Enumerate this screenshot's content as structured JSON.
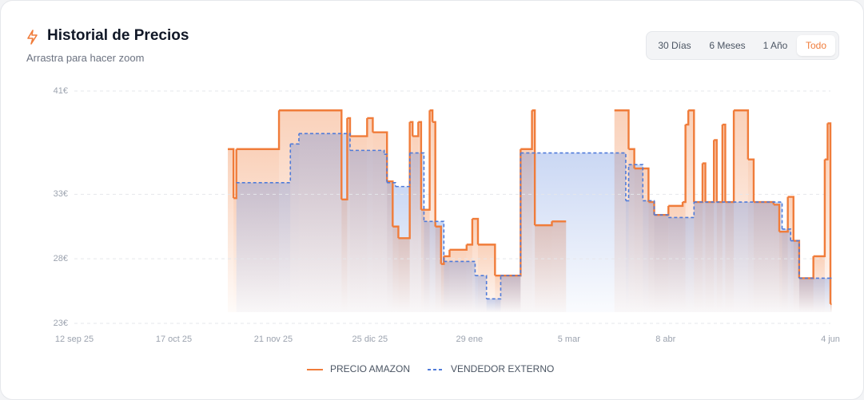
{
  "header": {
    "title": "Historial de Precios",
    "subtitle": "Arrastra para hacer zoom"
  },
  "range_buttons": [
    "30 Días",
    "6 Meses",
    "1 Año",
    "Todo"
  ],
  "selected_range": 3,
  "chart_data": {
    "type": "step",
    "xlim": [
      0,
      266
    ],
    "xticks": [
      {
        "value": 0,
        "label": "12 sep 25"
      },
      {
        "value": 35,
        "label": "17 oct 25"
      },
      {
        "value": 70,
        "label": "21 nov 25"
      },
      {
        "value": 104,
        "label": "25 dic 25"
      },
      {
        "value": 139,
        "label": "29 ene"
      },
      {
        "value": 174,
        "label": "5 mar"
      },
      {
        "value": 208,
        "label": "8 abr"
      },
      {
        "value": 266,
        "label": "4 jun"
      }
    ],
    "ylim": [
      23,
      41
    ],
    "yticks": [
      {
        "value": 23,
        "label": "23€"
      },
      {
        "value": 28,
        "label": "28€"
      },
      {
        "value": 33,
        "label": "33€"
      },
      {
        "value": 41,
        "label": "41€"
      }
    ],
    "grid": true,
    "series": [
      {
        "name": "PRECIO AMAZON",
        "color": "#f07c3a",
        "dashed": false,
        "x": [
          54,
          56,
          57,
          72,
          94,
          96,
          97,
          103,
          105,
          110,
          112,
          114,
          118,
          119,
          121,
          122,
          125,
          126,
          127,
          129,
          130,
          132,
          138,
          140,
          142,
          148,
          157,
          161,
          162,
          168,
          173,
          190,
          195,
          197,
          202,
          204,
          209,
          214,
          215,
          216,
          218,
          221,
          222,
          225,
          226,
          228,
          229,
          232,
          237,
          239,
          246,
          248,
          251,
          253,
          255,
          260,
          264,
          265,
          266
        ],
        "values": [
          36.5,
          32.7,
          36.5,
          39.5,
          32.6,
          38.9,
          37.5,
          38.9,
          37.8,
          34.0,
          30.5,
          29.6,
          38.6,
          37.5,
          38.6,
          31.8,
          39.5,
          38.6,
          30.5,
          27.6,
          28.2,
          28.7,
          29.1,
          31.1,
          29.1,
          26.7,
          36.5,
          39.5,
          30.6,
          30.9,
          null,
          39.5,
          36.5,
          35.0,
          32.4,
          31.4,
          32.1,
          32.4,
          38.4,
          39.5,
          32.4,
          35.4,
          32.4,
          37.2,
          32.4,
          38.4,
          32.4,
          39.5,
          35.7,
          32.4,
          32.2,
          30.1,
          32.8,
          29.4,
          26.5,
          28.2,
          35.7,
          38.5,
          24.5
        ]
      },
      {
        "name": "VENDEDOR EXTERNO",
        "color": "#4f7bd9",
        "dashed": true,
        "x": [
          57,
          76,
          79,
          97,
          109,
          110,
          113,
          118,
          123,
          130,
          141,
          145,
          150,
          157,
          194,
          195,
          200,
          204,
          209,
          218,
          249,
          252,
          255,
          266
        ],
        "values": [
          33.9,
          36.9,
          37.7,
          36.4,
          36.1,
          33.9,
          33.6,
          36.2,
          30.9,
          27.8,
          26.7,
          24.9,
          26.7,
          36.2,
          32.5,
          35.3,
          32.5,
          31.4,
          31.2,
          32.4,
          30.3,
          29.4,
          26.5,
          26.5
        ]
      }
    ]
  }
}
